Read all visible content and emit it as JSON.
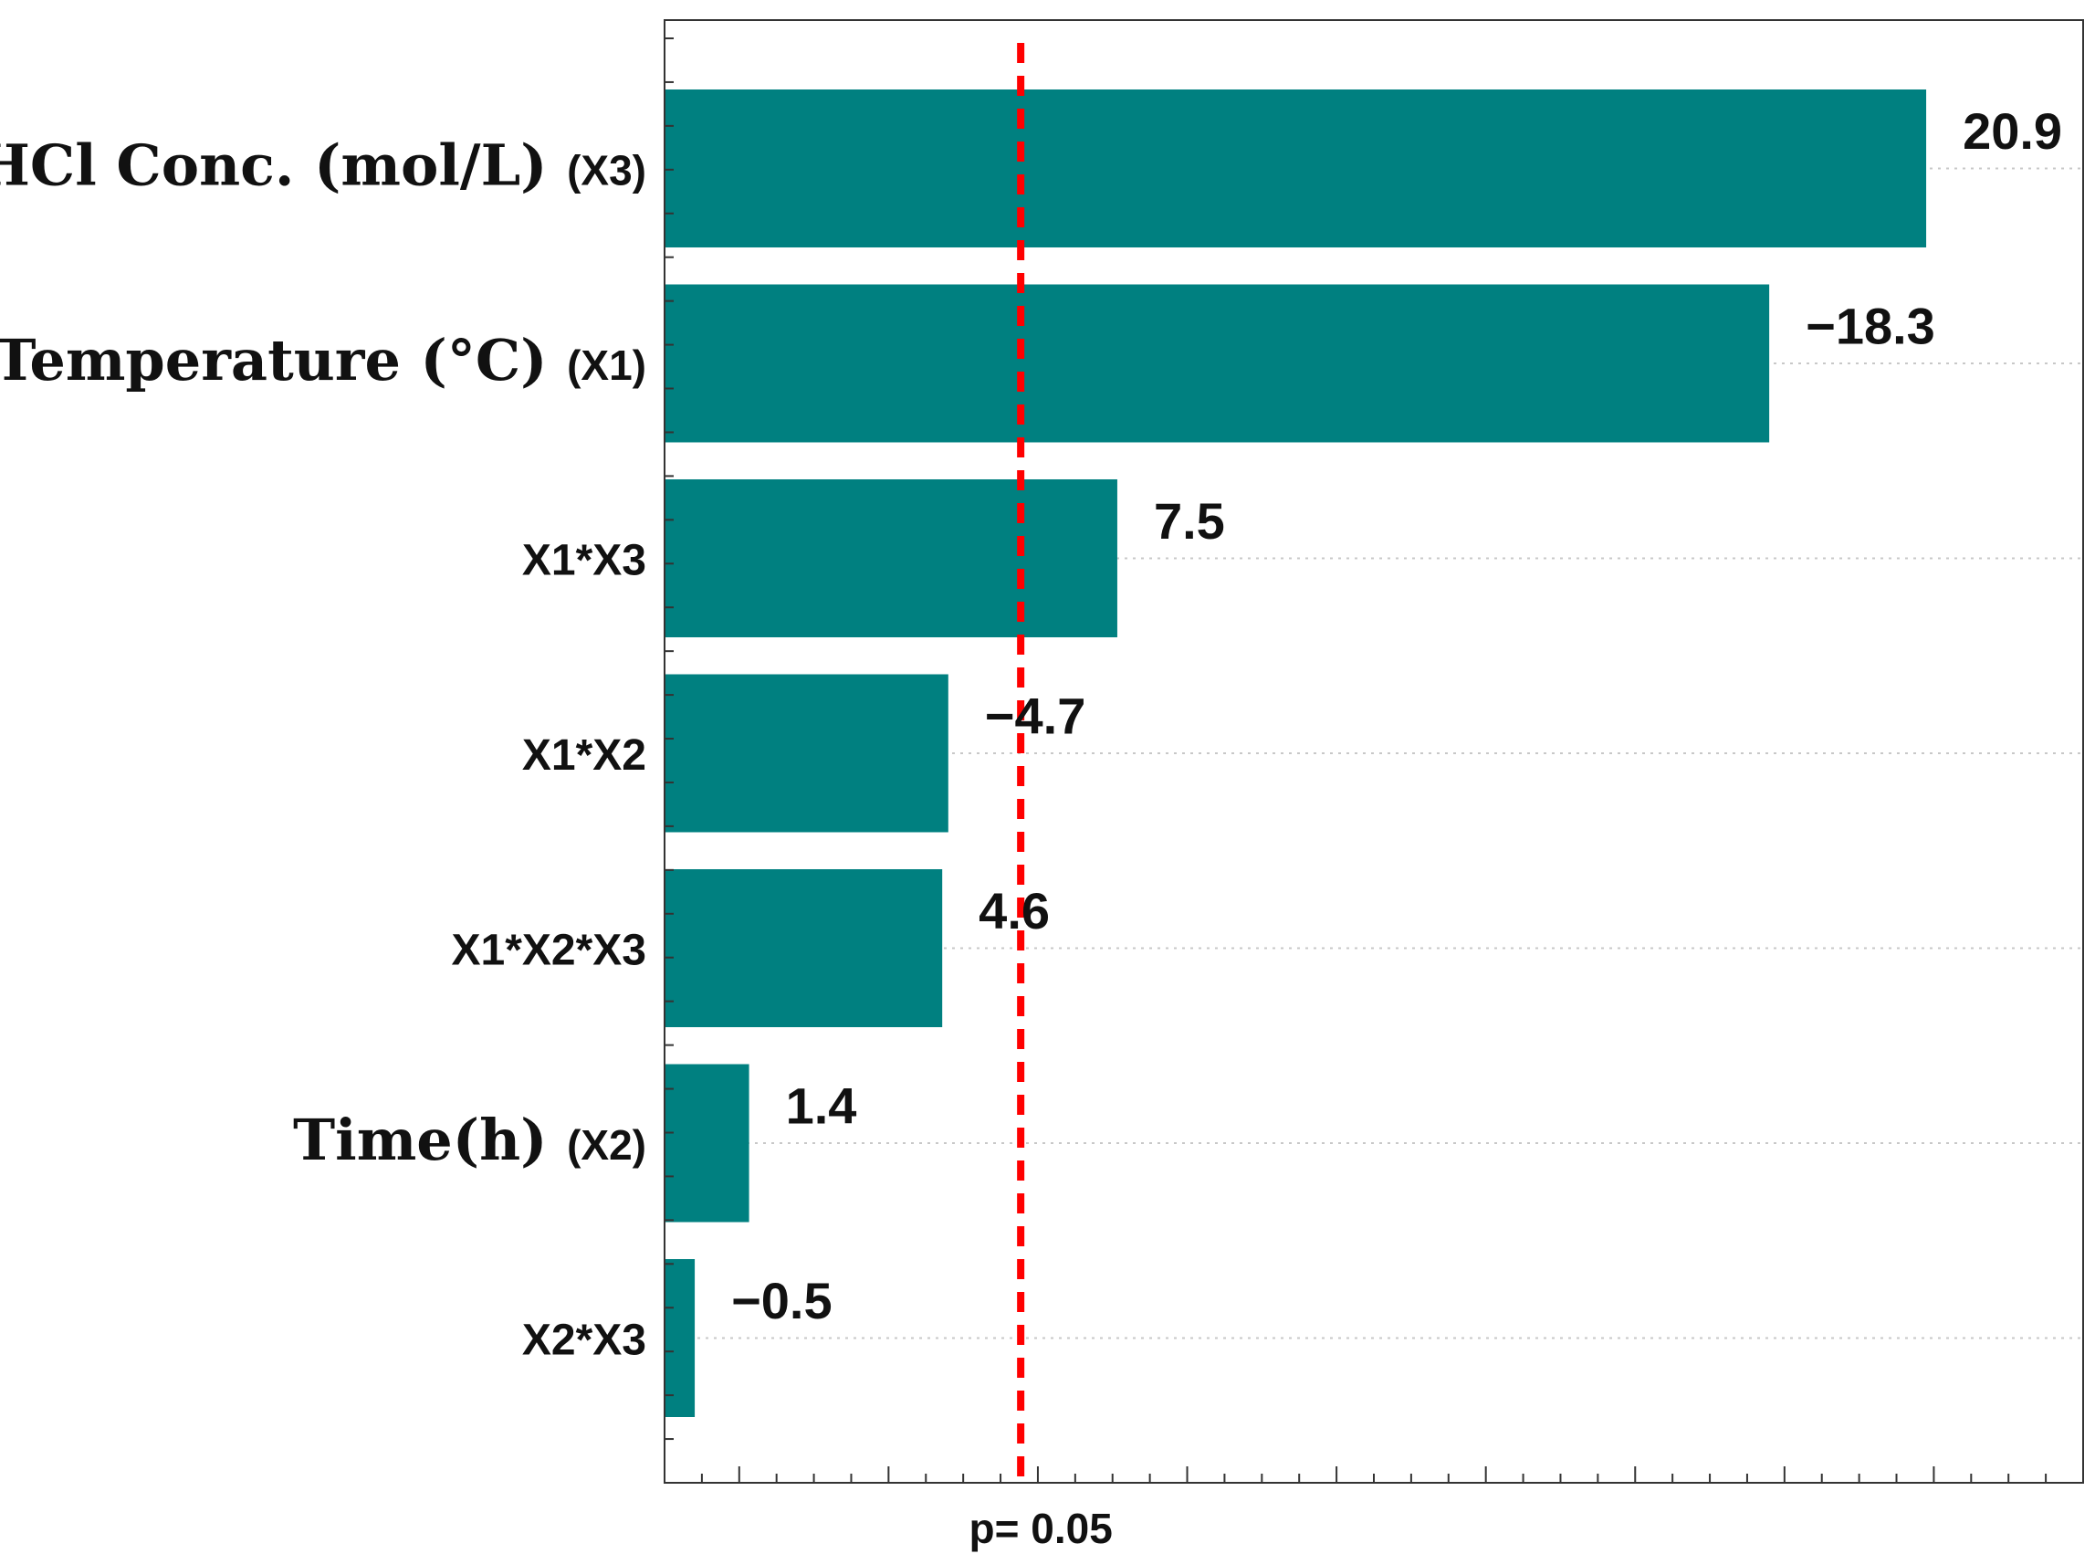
{
  "chart_data": {
    "type": "bar",
    "orientation": "horizontal",
    "bar_color": "#008080",
    "reference_line_color": "#ff0000",
    "categories": [
      {
        "main": "HCl Conc. (mol/L)",
        "suffix": "(X3)"
      },
      {
        "main": "Temperature (°C)",
        "suffix": "(X1)"
      },
      {
        "main": "",
        "suffix": "X1*X3"
      },
      {
        "main": "",
        "suffix": "X1*X2"
      },
      {
        "main": "",
        "suffix": "X1*X2*X3"
      },
      {
        "main": "Time(h)",
        "suffix": "(X2)"
      },
      {
        "main": "",
        "suffix": "X2*X3"
      }
    ],
    "bar_lengths": [
      20.9,
      18.3,
      7.5,
      4.7,
      4.6,
      1.4,
      0.5
    ],
    "value_labels": [
      "20.9",
      "−18.3",
      "7.5",
      "−4.7",
      "4.6",
      "1.4",
      "−0.5"
    ],
    "xlim": [
      0,
      23.5
    ],
    "reference_line": {
      "value": 5.9,
      "label": "p= 0.05"
    },
    "grid": "horizontal dotted",
    "legend": "none"
  }
}
